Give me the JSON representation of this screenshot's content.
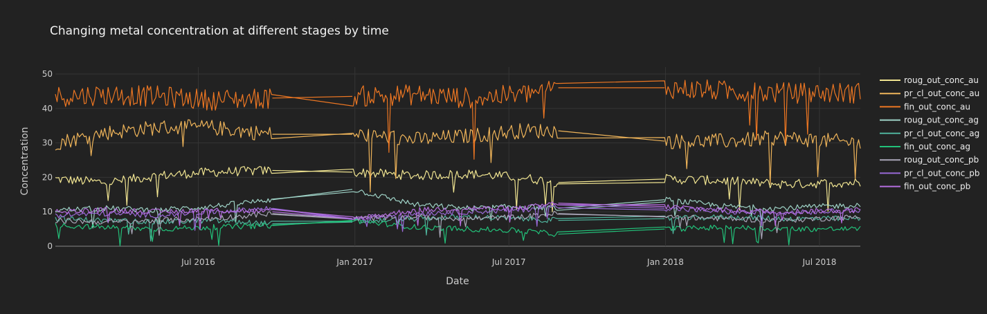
{
  "chart_data": {
    "type": "line",
    "title": "Changing metal concentration at different stages by time",
    "xlabel": "Date",
    "ylabel": "Concentration",
    "x_range": [
      "2016-01-15",
      "2018-08-18"
    ],
    "ylim": [
      0,
      52
    ],
    "y_ticks": [
      0,
      10,
      20,
      30,
      40,
      50
    ],
    "x_ticks": [
      {
        "date": "2016-07-01",
        "label": "Jul 2016"
      },
      {
        "date": "2017-01-01",
        "label": "Jan 2017"
      },
      {
        "date": "2017-07-01",
        "label": "Jul 2017"
      },
      {
        "date": "2018-01-01",
        "label": "Jan 2018"
      },
      {
        "date": "2018-07-01",
        "label": "Jul 2018"
      }
    ],
    "grid": true,
    "legend_position": "right",
    "data_gaps": [
      [
        "2016-09-26",
        "2016-12-29"
      ],
      [
        "2017-08-28",
        "2017-12-31"
      ]
    ],
    "series": [
      {
        "name": "roug_out_conc_au",
        "color": "#f2e692",
        "points": [
          [
            "2016-01-15",
            19.5
          ],
          [
            "2016-03-15",
            18.5
          ],
          [
            "2016-05-15",
            20.5
          ],
          [
            "2016-07-15",
            21.5
          ],
          [
            "2016-09-26",
            22.0
          ],
          [
            "2016-12-29",
            21.5
          ],
          [
            "2017-03-15",
            20.5
          ],
          [
            "2017-05-15",
            21.0
          ],
          [
            "2017-07-15",
            20.0
          ],
          [
            "2017-08-28",
            18.5
          ],
          [
            "2017-12-31",
            19.5
          ],
          [
            "2018-03-15",
            19.0
          ],
          [
            "2018-05-15",
            18.0
          ],
          [
            "2018-08-18",
            18.5
          ]
        ]
      },
      {
        "name": "pr_cl_out_conc_au",
        "color": "#f0b55a",
        "points": [
          [
            "2016-01-15",
            30.0
          ],
          [
            "2016-03-15",
            33.0
          ],
          [
            "2016-05-15",
            34.5
          ],
          [
            "2016-07-15",
            34.5
          ],
          [
            "2016-09-26",
            32.5
          ],
          [
            "2016-12-29",
            32.5
          ],
          [
            "2017-03-15",
            31.0
          ],
          [
            "2017-05-15",
            32.0
          ],
          [
            "2017-07-15",
            33.5
          ],
          [
            "2017-08-28",
            33.5
          ],
          [
            "2017-12-31",
            30.5
          ],
          [
            "2018-03-15",
            30.5
          ],
          [
            "2018-05-15",
            31.5
          ],
          [
            "2018-08-18",
            30.0
          ]
        ]
      },
      {
        "name": "fin_out_conc_au",
        "color": "#ee7722",
        "points": [
          [
            "2016-01-15",
            43.5
          ],
          [
            "2016-03-15",
            44.0
          ],
          [
            "2016-05-15",
            43.5
          ],
          [
            "2016-07-15",
            42.5
          ],
          [
            "2016-09-26",
            43.0
          ],
          [
            "2016-12-29",
            43.5
          ],
          [
            "2017-03-15",
            44.0
          ],
          [
            "2017-05-15",
            43.0
          ],
          [
            "2017-07-15",
            44.0
          ],
          [
            "2017-08-28",
            46.0
          ],
          [
            "2017-12-31",
            46.0
          ],
          [
            "2018-03-15",
            45.0
          ],
          [
            "2018-05-15",
            44.5
          ],
          [
            "2018-08-18",
            44.5
          ]
        ]
      },
      {
        "name": "roug_out_conc_ag",
        "color": "#9fd3c7",
        "points": [
          [
            "2016-01-15",
            10.5
          ],
          [
            "2016-03-15",
            11.0
          ],
          [
            "2016-05-15",
            10.5
          ],
          [
            "2016-07-15",
            11.5
          ],
          [
            "2016-09-26",
            13.5
          ],
          [
            "2016-12-29",
            16.5
          ],
          [
            "2017-03-15",
            12.0
          ],
          [
            "2017-05-15",
            11.0
          ],
          [
            "2017-07-15",
            11.5
          ],
          [
            "2017-08-28",
            11.0
          ],
          [
            "2017-12-31",
            13.5
          ],
          [
            "2018-03-15",
            11.5
          ],
          [
            "2018-05-15",
            11.0
          ],
          [
            "2018-08-18",
            12.0
          ]
        ]
      },
      {
        "name": "pr_cl_out_conc_ag",
        "color": "#4fb39c",
        "points": [
          [
            "2016-01-15",
            8.0
          ],
          [
            "2016-03-15",
            7.5
          ],
          [
            "2016-05-15",
            7.0
          ],
          [
            "2016-07-15",
            7.5
          ],
          [
            "2016-09-26",
            6.5
          ],
          [
            "2016-12-29",
            7.0
          ],
          [
            "2017-03-15",
            8.0
          ],
          [
            "2017-05-15",
            8.5
          ],
          [
            "2017-07-15",
            8.0
          ],
          [
            "2017-08-28",
            7.5
          ],
          [
            "2017-12-31",
            8.0
          ],
          [
            "2018-03-15",
            8.5
          ],
          [
            "2018-05-15",
            8.0
          ],
          [
            "2018-08-18",
            8.0
          ]
        ]
      },
      {
        "name": "fin_out_conc_ag",
        "color": "#22c27a",
        "points": [
          [
            "2016-01-15",
            6.0
          ],
          [
            "2016-03-15",
            5.5
          ],
          [
            "2016-05-15",
            5.0
          ],
          [
            "2016-07-15",
            5.5
          ],
          [
            "2016-09-26",
            6.0
          ],
          [
            "2016-12-29",
            7.5
          ],
          [
            "2017-03-15",
            5.5
          ],
          [
            "2017-05-15",
            5.0
          ],
          [
            "2017-07-15",
            4.5
          ],
          [
            "2017-08-28",
            3.5
          ],
          [
            "2017-12-31",
            5.0
          ],
          [
            "2018-03-15",
            5.5
          ],
          [
            "2018-05-15",
            5.0
          ],
          [
            "2018-08-18",
            5.0
          ]
        ]
      },
      {
        "name": "roug_out_conc_pb",
        "color": "#a9a6b8",
        "points": [
          [
            "2016-01-15",
            7.5
          ],
          [
            "2016-03-15",
            7.0
          ],
          [
            "2016-05-15",
            7.5
          ],
          [
            "2016-07-15",
            8.0
          ],
          [
            "2016-09-26",
            9.5
          ],
          [
            "2016-12-29",
            8.0
          ],
          [
            "2017-03-15",
            8.5
          ],
          [
            "2017-05-15",
            8.0
          ],
          [
            "2017-07-15",
            8.5
          ],
          [
            "2017-08-28",
            9.5
          ],
          [
            "2017-12-31",
            8.5
          ],
          [
            "2018-03-15",
            8.0
          ],
          [
            "2018-05-15",
            7.5
          ],
          [
            "2018-08-18",
            8.5
          ]
        ]
      },
      {
        "name": "pr_cl_out_conc_pb",
        "color": "#9a6ad8",
        "points": [
          [
            "2016-01-15",
            9.0
          ],
          [
            "2016-03-15",
            9.5
          ],
          [
            "2016-05-15",
            9.0
          ],
          [
            "2016-07-15",
            10.0
          ],
          [
            "2016-09-26",
            11.0
          ],
          [
            "2016-12-29",
            8.0
          ],
          [
            "2017-03-15",
            9.5
          ],
          [
            "2017-05-15",
            10.0
          ],
          [
            "2017-07-15",
            10.5
          ],
          [
            "2017-08-28",
            12.0
          ],
          [
            "2017-12-31",
            11.0
          ],
          [
            "2018-03-15",
            10.0
          ],
          [
            "2018-05-15",
            9.5
          ],
          [
            "2018-08-18",
            10.5
          ]
        ]
      },
      {
        "name": "fin_out_conc_pb",
        "color": "#b66ee0",
        "points": [
          [
            "2016-01-15",
            10.0
          ],
          [
            "2016-03-15",
            10.5
          ],
          [
            "2016-05-15",
            10.0
          ],
          [
            "2016-07-15",
            10.5
          ],
          [
            "2016-09-26",
            10.0
          ],
          [
            "2016-12-29",
            8.0
          ],
          [
            "2017-03-15",
            10.5
          ],
          [
            "2017-05-15",
            11.0
          ],
          [
            "2017-07-15",
            11.0
          ],
          [
            "2017-08-28",
            12.5
          ],
          [
            "2017-12-31",
            11.5
          ],
          [
            "2018-03-15",
            10.5
          ],
          [
            "2018-05-15",
            10.0
          ],
          [
            "2018-08-18",
            10.5
          ]
        ]
      }
    ]
  }
}
